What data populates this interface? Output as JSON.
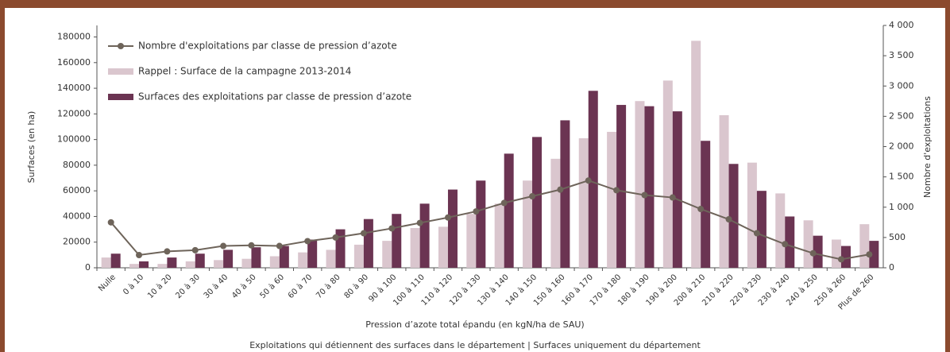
{
  "chart_data": {
    "type": "bar",
    "categories": [
      "Nulle",
      "0 à 10",
      "10 à 20",
      "20 à 30",
      "30 à 40",
      "40 à 50",
      "50 à 60",
      "60 à 70",
      "70 à 80",
      "80 à 90",
      "90 à 100",
      "100 à 110",
      "110 à 120",
      "120 à 130",
      "130 à 140",
      "140 à 150",
      "150 à 160",
      "160 à 170",
      "170 à 180",
      "180 à 190",
      "190 à 200",
      "200 à 210",
      "210 à 220",
      "220 à 230",
      "230 à 240",
      "240 à 250",
      "250 à 260",
      "Plus de 260"
    ],
    "series": [
      {
        "name": "Nombre d'exploitations  par classe de pression d’azote",
        "type": "line",
        "axis": "y2",
        "color": "#6e645a",
        "values": [
          750,
          210,
          270,
          290,
          360,
          370,
          360,
          440,
          500,
          570,
          650,
          740,
          830,
          930,
          1070,
          1180,
          1290,
          1440,
          1280,
          1200,
          1160,
          970,
          800,
          570,
          390,
          240,
          140,
          220
        ]
      },
      {
        "name": "Rappel : Surface de la campagne 2013-2014",
        "type": "bar",
        "color": "#dac6ce",
        "values": [
          8000,
          3000,
          3000,
          5000,
          6000,
          7000,
          9000,
          12000,
          14000,
          18000,
          21000,
          31000,
          32000,
          42000,
          50000,
          68000,
          85000,
          101000,
          106000,
          130000,
          146000,
          177000,
          119000,
          82000,
          58000,
          37000,
          22000,
          34000
        ]
      },
      {
        "name": "Surfaces des exploitations par classe de pression d’azote",
        "type": "bar",
        "color": "#6b3452",
        "values": [
          11000,
          5000,
          8000,
          11000,
          14000,
          16000,
          17000,
          22000,
          30000,
          38000,
          42000,
          50000,
          61000,
          68000,
          89000,
          102000,
          115000,
          138000,
          127000,
          126000,
          122000,
          99000,
          81000,
          60000,
          40000,
          25000,
          17000,
          21000
        ]
      }
    ],
    "ylabel": "Surfaces (en ha)",
    "y2label": "Nombre d'exploitations",
    "xlabel": "Pression d’azote total épandu (en kgN/ha de SAU)",
    "footer": "Exploitations qui détiennent des surfaces dans le département | Surfaces uniquement du département",
    "ylim": [
      0,
      189000
    ],
    "yticks": [
      0,
      20000,
      40000,
      60000,
      80000,
      100000,
      120000,
      140000,
      160000,
      180000
    ],
    "y2lim": [
      0,
      4000
    ],
    "y2ticks": [
      0,
      500,
      {
        "value": 1000,
        "label": "1 000"
      },
      {
        "value": 1500,
        "label": "1 500"
      },
      {
        "value": 2000,
        "label": "2 000"
      },
      {
        "value": 2500,
        "label": "2 500"
      },
      {
        "value": 3000,
        "label": "3 000"
      },
      {
        "value": 3500,
        "label": "3 500"
      },
      {
        "value": 4000,
        "label": "4 000"
      }
    ]
  }
}
